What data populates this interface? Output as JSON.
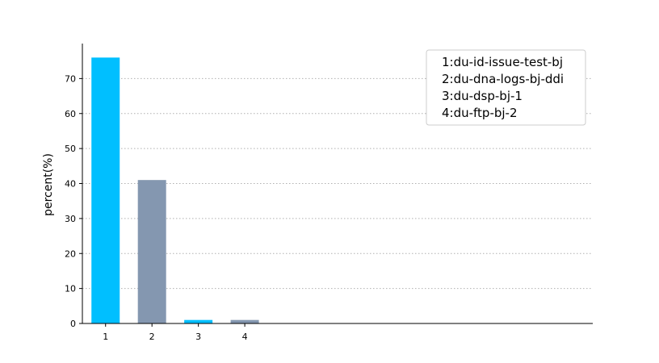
{
  "chart_data": {
    "type": "bar",
    "categories": [
      "1",
      "2",
      "3",
      "4"
    ],
    "values": [
      76,
      41,
      1,
      1
    ],
    "colors": [
      "#00bfff",
      "#8497b0",
      "#00bfff",
      "#8497b0"
    ],
    "title": "",
    "xlabel": "",
    "ylabel": "percent(%)",
    "ylim": [
      0,
      80
    ],
    "xlim": [
      0.5,
      11.5
    ],
    "yticks": [
      0,
      10,
      20,
      30,
      40,
      50,
      60,
      70
    ],
    "grid": "y-dotted",
    "legend_position": "top-right",
    "legend": [
      "1:du-id-issue-test-bj",
      "2:du-dna-logs-bj-ddi",
      "3:du-dsp-bj-1",
      "4:du-ftp-bj-2"
    ]
  }
}
